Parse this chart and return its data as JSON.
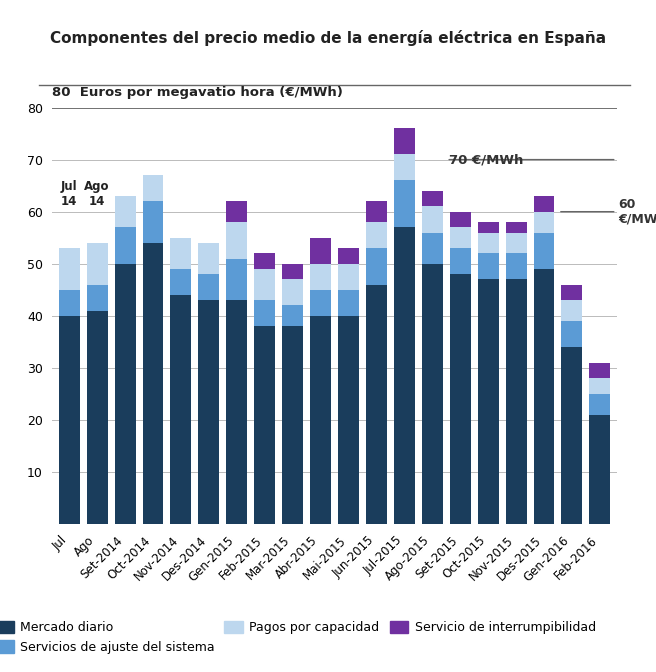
{
  "title": "Componentes del precio medio de la energía eléctrica en España",
  "ylabel_text": "80  Euros por megavatio hora (€/MWh)",
  "ylim": [
    0,
    80
  ],
  "yticks": [
    0,
    10,
    20,
    30,
    40,
    50,
    60,
    70,
    80
  ],
  "categories": [
    "Jul",
    "Ago",
    "Set-2014",
    "Oct-2014",
    "Nov-2014",
    "Des-2014",
    "Gen-2015",
    "Feb-2015",
    "Mar-2015",
    "Abr-2015",
    "Mai-2015",
    "Jun-2015",
    "Jul-2015",
    "Ago-2015",
    "Set-2015",
    "Oct-2015",
    "Nov-2015",
    "Des-2015",
    "Gen-2016",
    "Feb-2016"
  ],
  "mercado_diario": [
    40,
    41,
    50,
    54,
    44,
    43,
    43,
    38,
    38,
    40,
    40,
    46,
    57,
    50,
    48,
    47,
    47,
    49,
    34,
    21
  ],
  "servicios_ajuste": [
    5,
    5,
    7,
    8,
    5,
    5,
    8,
    5,
    4,
    5,
    5,
    7,
    9,
    6,
    5,
    5,
    5,
    7,
    5,
    4
  ],
  "pagos_capacidad": [
    8,
    8,
    6,
    5,
    6,
    6,
    7,
    6,
    5,
    5,
    5,
    5,
    5,
    5,
    4,
    4,
    4,
    4,
    4,
    3
  ],
  "interrumpibilidad": [
    0,
    0,
    0,
    0,
    0,
    0,
    4,
    3,
    3,
    5,
    3,
    4,
    5,
    3,
    3,
    2,
    2,
    3,
    3,
    3
  ],
  "color_mercado": "#1a3d5c",
  "color_servicios": "#5b9bd5",
  "color_pagos": "#bdd7ee",
  "color_interrumpible": "#7030a0",
  "legend_labels": [
    "Mercado diario",
    "Servicios de ajuste del sistema",
    "Pagos por capacidad",
    "Servicio de interrumpibilidad"
  ],
  "background_color": "#ffffff",
  "grid_color": "#bbbbbb",
  "bar_width": 0.75
}
